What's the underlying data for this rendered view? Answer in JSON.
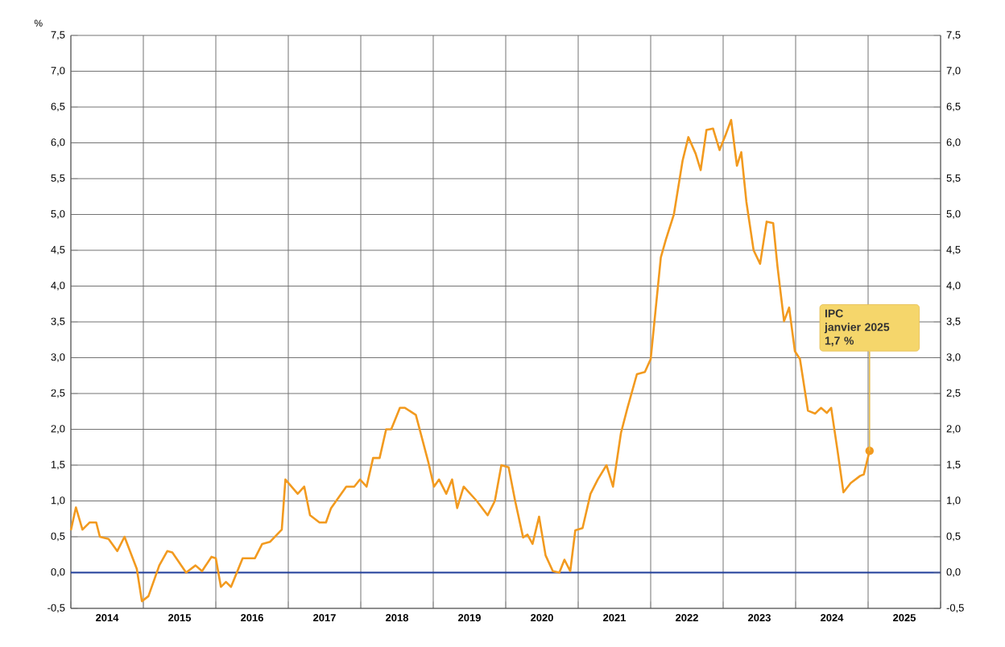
{
  "chart_data": {
    "type": "line",
    "ylabel": "%",
    "x": [
      2014.0,
      2014.07,
      2014.16,
      2014.26,
      2014.35,
      2014.4,
      2014.52,
      2014.64,
      2014.74,
      2014.91,
      2014.98,
      2015.07,
      2015.22,
      2015.33,
      2015.4,
      2015.59,
      2015.72,
      2015.81,
      2015.94,
      2016.0,
      2016.07,
      2016.14,
      2016.21,
      2016.37,
      2016.54,
      2016.64,
      2016.75,
      2016.91,
      2016.96,
      2017.13,
      2017.22,
      2017.3,
      2017.43,
      2017.52,
      2017.59,
      2017.8,
      2017.91,
      2017.99,
      2018.08,
      2018.17,
      2018.26,
      2018.35,
      2018.42,
      2018.54,
      2018.61,
      2018.76,
      2018.93,
      2019.01,
      2019.08,
      2019.18,
      2019.26,
      2019.33,
      2019.42,
      2019.6,
      2019.75,
      2019.85,
      2019.94,
      2020.04,
      2020.13,
      2020.24,
      2020.3,
      2020.37,
      2020.46,
      2020.55,
      2020.65,
      2020.74,
      2020.81,
      2020.89,
      2020.96,
      2021.06,
      2021.17,
      2021.27,
      2021.39,
      2021.48,
      2021.59,
      2021.68,
      2021.81,
      2021.92,
      2022.0,
      2022.14,
      2022.21,
      2022.32,
      2022.44,
      2022.52,
      2022.62,
      2022.69,
      2022.77,
      2022.86,
      2022.95,
      2023.03,
      2023.11,
      2023.19,
      2023.25,
      2023.32,
      2023.42,
      2023.51,
      2023.6,
      2023.69,
      2023.75,
      2023.84,
      2023.91,
      2023.99,
      2024.06,
      2024.17,
      2024.27,
      2024.35,
      2024.43,
      2024.49,
      2024.58,
      2024.66,
      2024.76,
      2024.89,
      2024.94,
      2025.02
    ],
    "series": [
      {
        "color": "#f29a1f",
        "values": [
          0.59,
          0.91,
          0.6,
          0.7,
          0.7,
          0.5,
          0.47,
          0.3,
          0.5,
          0.05,
          -0.4,
          -0.33,
          0.1,
          0.3,
          0.28,
          0.0,
          0.1,
          0.02,
          0.22,
          0.2,
          -0.2,
          -0.13,
          -0.2,
          0.2,
          0.2,
          0.4,
          0.43,
          0.6,
          1.3,
          1.1,
          1.2,
          0.8,
          0.7,
          0.7,
          0.9,
          1.2,
          1.2,
          1.3,
          1.2,
          1.6,
          1.6,
          2.0,
          2.0,
          2.3,
          2.3,
          2.2,
          1.55,
          1.2,
          1.3,
          1.1,
          1.3,
          0.9,
          1.2,
          1.0,
          0.8,
          1.0,
          1.5,
          1.47,
          1.0,
          0.49,
          0.53,
          0.4,
          0.78,
          0.24,
          0.02,
          0.0,
          0.18,
          0.02,
          0.59,
          0.62,
          1.1,
          1.3,
          1.5,
          1.2,
          1.95,
          2.3,
          2.77,
          2.8,
          2.98,
          4.4,
          4.65,
          5.0,
          5.75,
          6.08,
          5.85,
          5.62,
          6.18,
          6.2,
          5.9,
          6.1,
          6.32,
          5.68,
          5.87,
          5.18,
          4.5,
          4.31,
          4.9,
          4.88,
          4.27,
          3.51,
          3.7,
          3.09,
          2.98,
          2.26,
          2.22,
          2.3,
          2.23,
          2.3,
          1.69,
          1.12,
          1.25,
          1.35,
          1.37,
          1.7
        ]
      }
    ],
    "xlim": [
      2014,
      2026
    ],
    "xticks": [
      {
        "value": 2014,
        "label": null
      },
      {
        "value": 2015,
        "label": null
      },
      {
        "value": 2016,
        "label": null
      },
      {
        "value": 2017,
        "label": null
      },
      {
        "value": 2018,
        "label": null
      },
      {
        "value": 2019,
        "label": null
      },
      {
        "value": 2020,
        "label": null
      },
      {
        "value": 2021,
        "label": null
      },
      {
        "value": 2022,
        "label": null
      },
      {
        "value": 2023,
        "label": null
      },
      {
        "value": 2024,
        "label": null
      },
      {
        "value": 2025,
        "label": null
      },
      {
        "value": 2026,
        "label": null
      },
      {
        "value": 2014.5,
        "label": "2014"
      },
      {
        "value": 2015.5,
        "label": "2015"
      },
      {
        "value": 2016.5,
        "label": "2016"
      },
      {
        "value": 2017.5,
        "label": "2017"
      },
      {
        "value": 2018.5,
        "label": "2018"
      },
      {
        "value": 2019.5,
        "label": "2019"
      },
      {
        "value": 2020.5,
        "label": "2020"
      },
      {
        "value": 2021.5,
        "label": "2021"
      },
      {
        "value": 2022.5,
        "label": "2022"
      },
      {
        "value": 2023.5,
        "label": "2023"
      },
      {
        "value": 2024.5,
        "label": "2024"
      },
      {
        "value": 2025.5,
        "label": "2025"
      }
    ],
    "ylim": [
      -0.5,
      7.5
    ],
    "yticks": [
      {
        "value": -0.5,
        "label": "-0,5"
      },
      {
        "value": 0,
        "label": "0,0"
      },
      {
        "value": 0.5,
        "label": "0,5"
      },
      {
        "value": 1,
        "label": "1,0"
      },
      {
        "value": 1.5,
        "label": "1,5"
      },
      {
        "value": 2,
        "label": "2,0"
      },
      {
        "value": 2.5,
        "label": "2,5"
      },
      {
        "value": 3,
        "label": "3,0"
      },
      {
        "value": 3.5,
        "label": "3,5"
      },
      {
        "value": 4,
        "label": "4,0"
      },
      {
        "value": 4.5,
        "label": "4,5"
      },
      {
        "value": 5,
        "label": "5,0"
      },
      {
        "value": 5.5,
        "label": "5,5"
      },
      {
        "value": 6,
        "label": "6,0"
      },
      {
        "value": 6.5,
        "label": "6,5"
      },
      {
        "value": 7,
        "label": "7,0"
      },
      {
        "value": 7.5,
        "label": "7,5"
      }
    ],
    "y2lim": [
      -0.5,
      7.5
    ],
    "y2ticks": [
      {
        "value": -0.5,
        "label": "-0,5"
      },
      {
        "value": 0,
        "label": "0,0"
      },
      {
        "value": 0.5,
        "label": "0,5"
      },
      {
        "value": 1,
        "label": "1,0"
      },
      {
        "value": 1.5,
        "label": "1,5"
      },
      {
        "value": 2,
        "label": "2,0"
      },
      {
        "value": 2.5,
        "label": "2,5"
      },
      {
        "value": 3,
        "label": "3,0"
      },
      {
        "value": 3.5,
        "label": "3,5"
      },
      {
        "value": 4,
        "label": "4,0"
      },
      {
        "value": 4.5,
        "label": "4,5"
      },
      {
        "value": 5,
        "label": "5,0"
      },
      {
        "value": 5.5,
        "label": "5,5"
      },
      {
        "value": 6,
        "label": "6,0"
      },
      {
        "value": 6.5,
        "label": "6,5"
      },
      {
        "value": 7,
        "label": "7,0"
      },
      {
        "value": 7.5,
        "label": "7,5"
      }
    ],
    "ref_lines": [
      {
        "axis": "y",
        "value": 0,
        "color": "#1f3d99"
      }
    ],
    "grid": true,
    "marker": "none",
    "line_style": "solid",
    "annotations": [
      {
        "text": "IPC\njanvier 2025\n1,7 %",
        "x": 2025.02,
        "y": 1.7
      }
    ]
  }
}
